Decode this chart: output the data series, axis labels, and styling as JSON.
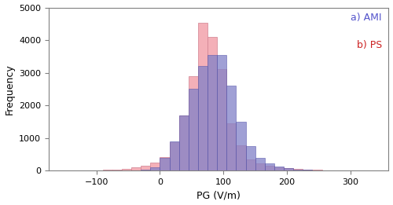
{
  "title": "",
  "xlabel": "PG (V/m)",
  "ylabel": "Frequency",
  "xlim": [
    -175,
    360
  ],
  "ylim": [
    0,
    5000
  ],
  "yticks": [
    0,
    1000,
    2000,
    3000,
    4000,
    5000
  ],
  "xticks": [
    -100,
    0,
    100,
    200,
    300
  ],
  "bin_width": 15,
  "ami_color": "#8080c8",
  "ami_edge_color": "#5555aa",
  "ps_color": "#f4b0b8",
  "ps_edge_color": "#d08090",
  "ami_label": "a) AMI",
  "ps_label": "b) PS",
  "ami_label_color": "#5555cc",
  "ps_label_color": "#cc2222",
  "legend_fontsize": 9,
  "ami_bins_edges": [
    -165,
    -150,
    -135,
    -120,
    -105,
    -90,
    -75,
    -60,
    -45,
    -30,
    -15,
    0,
    15,
    30,
    45,
    60,
    75,
    90,
    105,
    120,
    135,
    150,
    165,
    180,
    195,
    210,
    225,
    240,
    255,
    270,
    285,
    300,
    315,
    330,
    345
  ],
  "ami_counts": [
    0,
    0,
    0,
    0,
    0,
    0,
    0,
    0,
    5,
    30,
    100,
    390,
    900,
    1700,
    2500,
    3200,
    3550,
    3550,
    2600,
    1490,
    760,
    380,
    230,
    120,
    65,
    35,
    18,
    10,
    5,
    3,
    2,
    1,
    0,
    0
  ],
  "ps_bins_edges": [
    -165,
    -150,
    -135,
    -120,
    -105,
    -90,
    -75,
    -60,
    -45,
    -30,
    -15,
    0,
    15,
    30,
    45,
    60,
    75,
    90,
    105,
    120,
    135,
    150,
    165,
    180,
    195,
    210,
    225,
    240,
    255,
    270,
    285,
    300,
    315,
    330,
    345
  ],
  "ps_counts": [
    5,
    8,
    10,
    12,
    15,
    20,
    30,
    50,
    90,
    150,
    240,
    420,
    860,
    1680,
    2900,
    4520,
    4100,
    3100,
    1450,
    780,
    350,
    230,
    155,
    100,
    70,
    45,
    30,
    20,
    14,
    10,
    8,
    5,
    3,
    2
  ]
}
